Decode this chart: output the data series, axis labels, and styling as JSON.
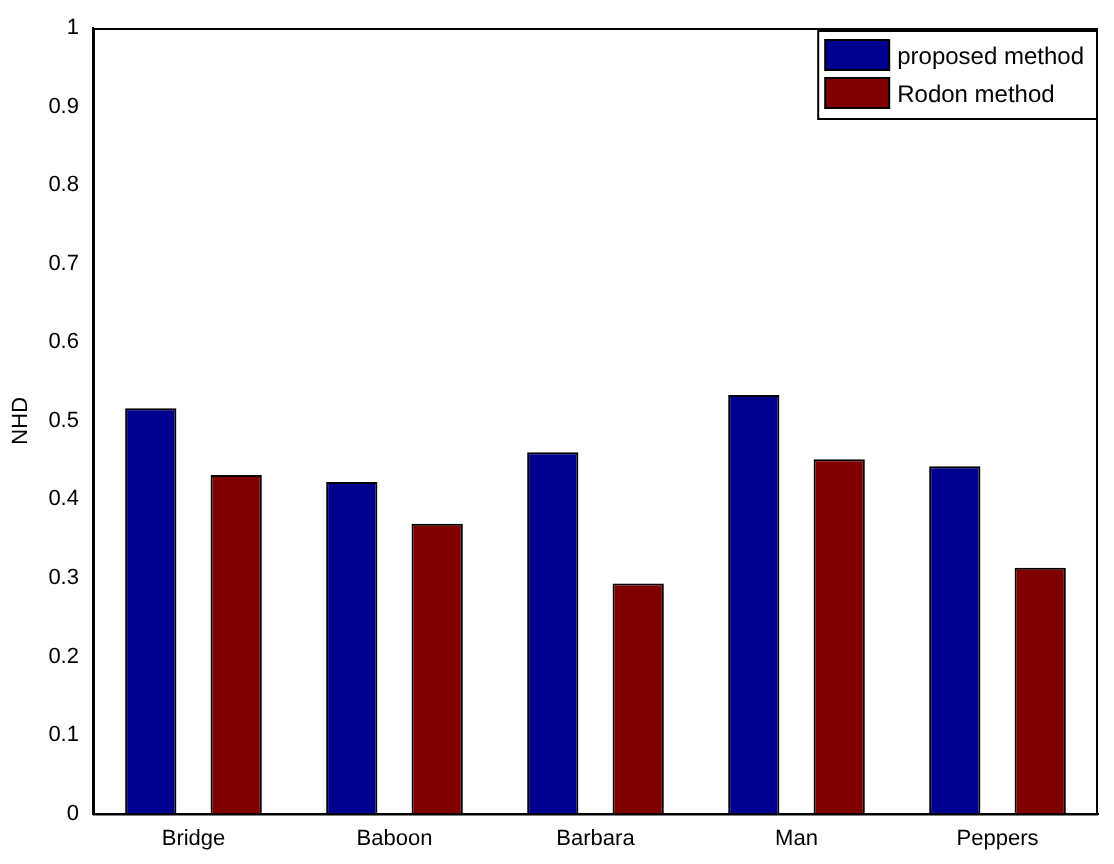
{
  "chart_data": {
    "type": "bar",
    "ylabel": "NHD",
    "categories": [
      "Bridge",
      "Baboon",
      "Barbara",
      "Man",
      "Peppers"
    ],
    "series": [
      {
        "name": "proposed method",
        "color": "#00008f",
        "values": [
          0.516,
          0.422,
          0.46,
          0.533,
          0.442
        ]
      },
      {
        "name": "Rodon method",
        "color": "#800000",
        "values": [
          0.431,
          0.369,
          0.293,
          0.451,
          0.313
        ]
      }
    ],
    "ylim": [
      0,
      1
    ],
    "yticks": [
      0,
      0.1,
      0.2,
      0.3,
      0.4,
      0.5,
      0.6,
      0.7,
      0.8,
      0.9,
      1
    ],
    "grid": false,
    "legend": "top right"
  }
}
